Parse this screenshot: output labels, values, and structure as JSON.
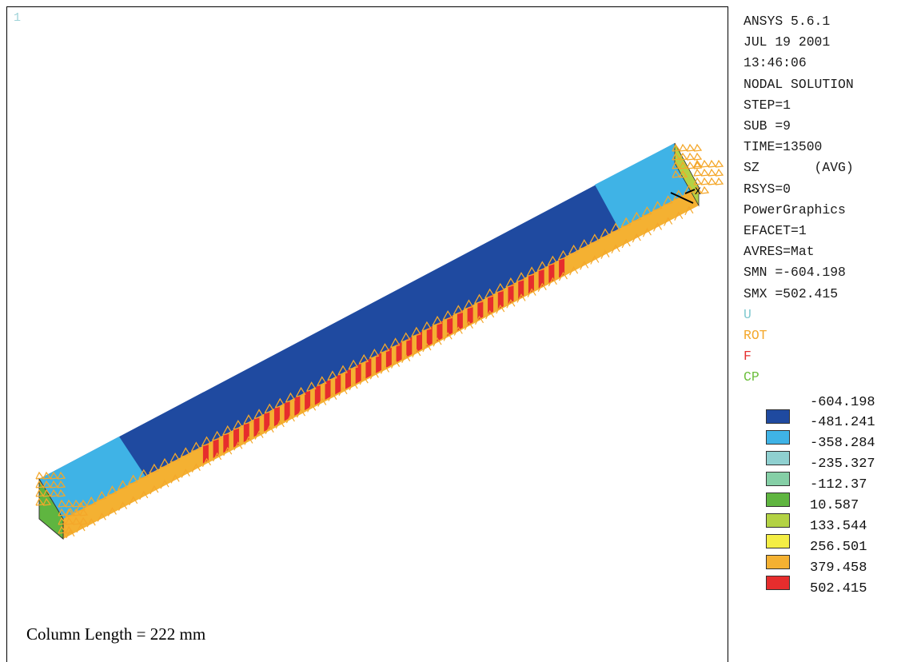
{
  "viewport": {
    "window_number": "1",
    "caption": "Column Length = 222 mm"
  },
  "info": {
    "program": "ANSYS 5.6.1",
    "date": "JUL 19 2001",
    "time": "13:46:06",
    "solution": "NODAL SOLUTION",
    "step": "STEP=1",
    "sub": "SUB =9",
    "time_value": "TIME=13500",
    "sz": "SZ       (AVG)",
    "rsys": "RSYS=0",
    "graphics": "PowerGraphics",
    "efacet": "EFACET=1",
    "avres": "AVRES=Mat",
    "smn": "SMN =-604.198",
    "smx": "SMX =502.415"
  },
  "bc_legend": {
    "u": "U",
    "rot": "ROT",
    "f": "F",
    "cp": "CP"
  },
  "contour_legend": {
    "min_value": "-604.198",
    "bands": [
      {
        "color": "#1f4aa0",
        "value": "-481.241"
      },
      {
        "color": "#3fb3e6",
        "value": "-358.284"
      },
      {
        "color": "#8fd0d0",
        "value": "-235.327"
      },
      {
        "color": "#85cfa6",
        "value": "-112.37"
      },
      {
        "color": "#5fb540",
        "value": "10.587"
      },
      {
        "color": "#b3d244",
        "value": "133.544"
      },
      {
        "color": "#f4ee45",
        "value": "256.501"
      },
      {
        "color": "#f4b132",
        "value": "379.458"
      },
      {
        "color": "#e62d2d",
        "value": "502.415"
      }
    ]
  },
  "colors": {
    "compression_dark": "#1f4aa0",
    "compression_light": "#3fb3e6",
    "tension": "#e62d2d",
    "constraint": "#f4a72a",
    "coupled": "#6cbf3c"
  }
}
